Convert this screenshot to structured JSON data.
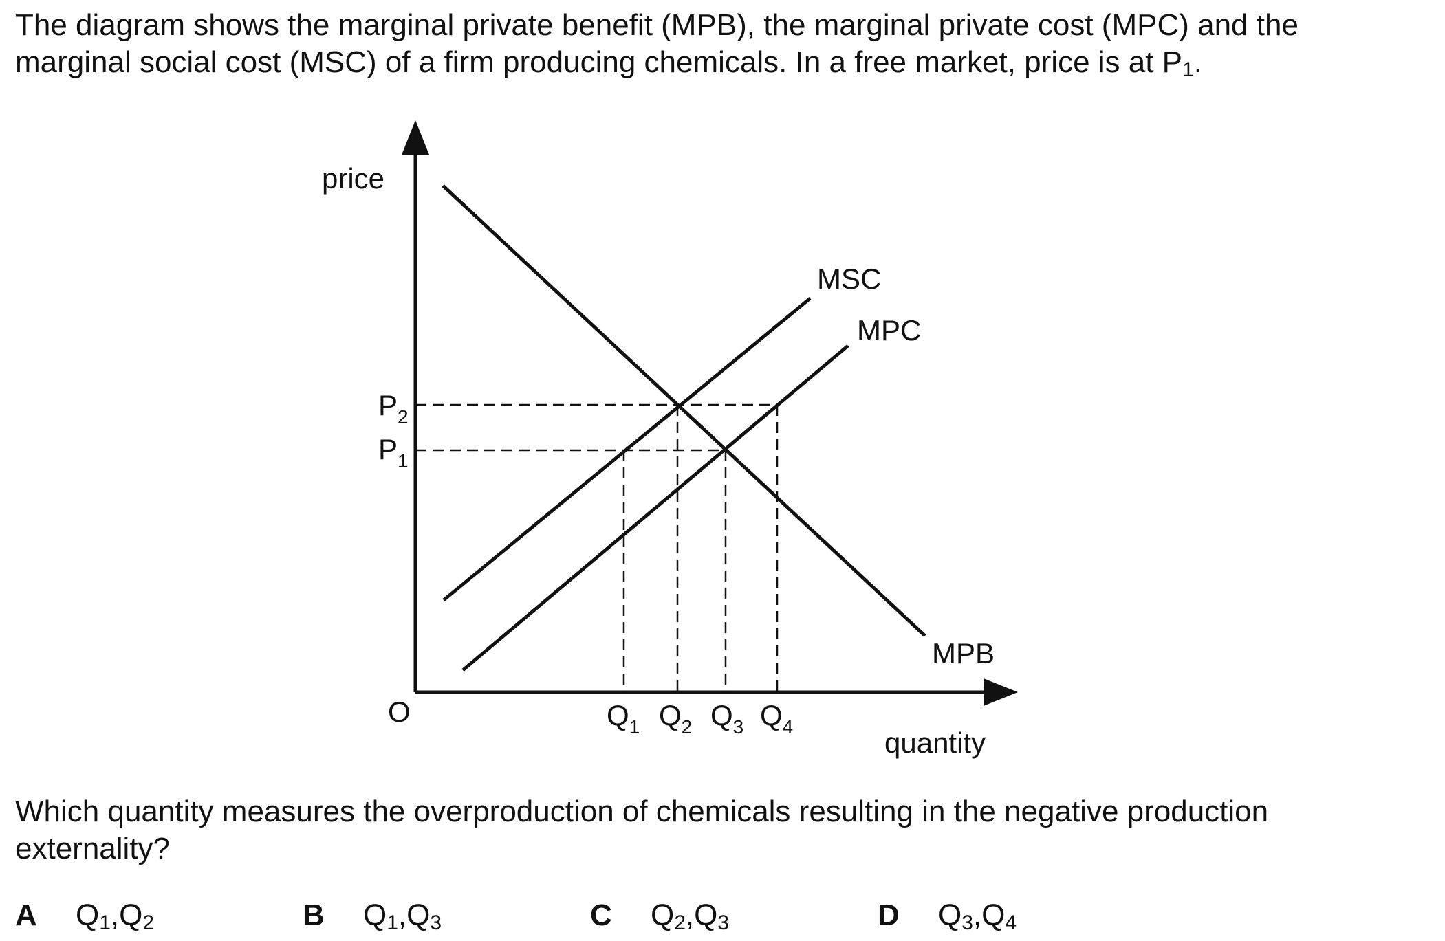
{
  "question": {
    "intro_line1": "The diagram shows the marginal private benefit (MPB), the marginal private cost (MPC) and the",
    "intro_line2_prefix": "marginal social cost (MSC) of a firm producing chemicals. In a free market, price is at P",
    "intro_line2_sub": "1",
    "intro_line2_suffix": ".",
    "prompt_line1": "Which quantity measures the overproduction of chemicals resulting in the negative production",
    "prompt_line2": "externality?"
  },
  "diagram": {
    "y_axis_label": "price",
    "x_axis_label": "quantity",
    "origin_label": "O",
    "curves": {
      "msc": "MSC",
      "mpc": "MPC",
      "mpb": "MPB"
    },
    "price_ticks": [
      {
        "main": "P",
        "sub": "2"
      },
      {
        "main": "P",
        "sub": "1"
      }
    ],
    "quantity_ticks": [
      {
        "main": "Q",
        "sub": "1"
      },
      {
        "main": "Q",
        "sub": "2"
      },
      {
        "main": "Q",
        "sub": "3"
      },
      {
        "main": "Q",
        "sub": "4"
      }
    ]
  },
  "options": [
    {
      "letter": "A",
      "a_main": "Q",
      "a_sub": "1",
      "sep": ",",
      "b_main": "Q",
      "b_sub": "2"
    },
    {
      "letter": "B",
      "a_main": "Q",
      "a_sub": "1",
      "sep": ",",
      "b_main": "Q",
      "b_sub": "3"
    },
    {
      "letter": "C",
      "a_main": "Q",
      "a_sub": "2",
      "sep": ",",
      "b_main": "Q",
      "b_sub": "3"
    },
    {
      "letter": "D",
      "a_main": "Q",
      "a_sub": "3",
      "sep": ",",
      "b_main": "Q",
      "b_sub": "4"
    }
  ],
  "colors": {
    "ink": "#111111",
    "background": "#ffffff"
  }
}
